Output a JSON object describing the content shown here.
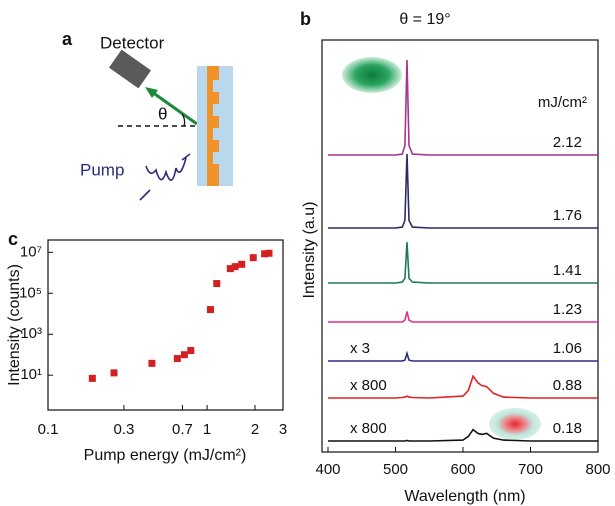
{
  "diagram": {
    "panel_label": "a",
    "detector": "Detector",
    "angle": "θ",
    "pump": "Pump"
  },
  "chart_data": [
    {
      "type": "line",
      "panel_label": "b",
      "title": "θ = 19°",
      "x_label": "Wavelength (nm)",
      "y_label": "Intensity (a.u)",
      "unit_label": "mJ/cm²",
      "x": [
        400,
        500,
        510,
        514,
        517,
        520,
        525,
        550,
        600,
        608,
        615,
        622,
        628,
        635,
        645,
        660,
        700,
        800
      ],
      "series": [
        {
          "name": "2.12",
          "color": "#a8358f",
          "values": [
            0,
            0,
            0.01,
            0.1,
            1,
            0.1,
            0.01,
            0,
            0,
            0,
            0,
            0,
            0,
            0,
            0,
            0,
            0,
            0
          ]
        },
        {
          "name": "1.76",
          "color": "#2b2b66",
          "values": [
            0,
            0,
            0.01,
            0.08,
            0.78,
            0.08,
            0.01,
            0,
            0,
            0,
            0,
            0,
            0,
            0,
            0,
            0,
            0,
            0
          ]
        },
        {
          "name": "1.41",
          "color": "#1f7a55",
          "values": [
            0,
            0,
            0.01,
            0.05,
            0.43,
            0.05,
            0.01,
            0,
            0,
            0,
            0,
            0,
            0,
            0,
            0,
            0,
            0,
            0
          ]
        },
        {
          "name": "1.23",
          "color": "#e2308c",
          "values": [
            0,
            0,
            0,
            0.02,
            0.11,
            0.02,
            0,
            0,
            0,
            0,
            0,
            0,
            0,
            0,
            0,
            0,
            0,
            0
          ]
        },
        {
          "name": "1.06",
          "color": "#2e2e80",
          "values": [
            0,
            0,
            0,
            0.01,
            0.08,
            0.01,
            0,
            0,
            0,
            0,
            0,
            0,
            0,
            0,
            0,
            0,
            0,
            0
          ],
          "annotation": "x 3"
        },
        {
          "name": "0.88",
          "color": "#e32222",
          "values": [
            0,
            0,
            0.005,
            0.01,
            0.02,
            0.01,
            0.005,
            0,
            0.02,
            0.08,
            0.23,
            0.16,
            0.13,
            0.12,
            0.05,
            0.01,
            0,
            0
          ],
          "annotation": "x 800"
        },
        {
          "name": "0.18",
          "color": "#111111",
          "values": [
            0,
            0,
            0,
            0,
            0.005,
            0,
            0,
            0,
            0.01,
            0.05,
            0.12,
            0.08,
            0.07,
            0.08,
            0.03,
            0.01,
            0,
            0
          ],
          "annotation": "x 800"
        }
      ],
      "xlim": [
        400,
        800
      ],
      "xticks": [
        400,
        500,
        600,
        700,
        800
      ]
    },
    {
      "type": "scatter",
      "panel_label": "c",
      "x_label": "Pump energy (mJ/cm²)",
      "y_label": "Intensity (counts)",
      "color": "#d42020",
      "x": [
        0.19,
        0.26,
        0.45,
        0.65,
        0.72,
        0.79,
        1.05,
        1.15,
        1.4,
        1.5,
        1.65,
        1.95,
        2.3,
        2.45
      ],
      "values": [
        7,
        13,
        38,
        65,
        100,
        160,
        16000,
        300000,
        1600000,
        2000000,
        2600000,
        5500000,
        8500000,
        9000000
      ],
      "xlim": [
        0.1,
        3
      ],
      "ylim": [
        0.2,
        40000000
      ],
      "log_x": true,
      "log_y": true,
      "xticks": [
        0.1,
        0.3,
        0.7,
        1,
        2,
        3
      ],
      "yticks": [
        {
          "value": 10,
          "label": "10¹"
        },
        {
          "value": 1000,
          "label": "10³"
        },
        {
          "value": 100000,
          "label": "10⁵"
        },
        {
          "value": 10000000,
          "label": "10⁷"
        }
      ]
    }
  ]
}
